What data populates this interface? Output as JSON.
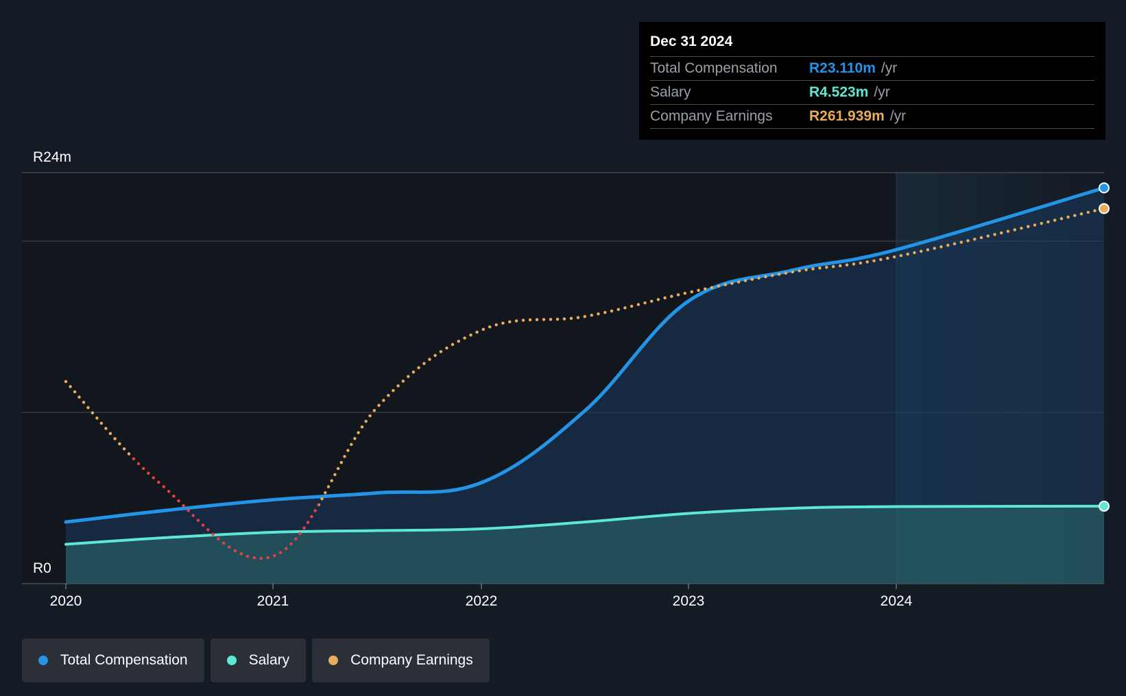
{
  "colors": {
    "background": "#151b24",
    "total_compensation": "#2394e6",
    "salary": "#5ee8d3",
    "company_earnings": "#e9ab5c",
    "company_earnings_negative": "#e84141",
    "grid": "#3a4049"
  },
  "tooltip": {
    "date": "Dec 31 2024",
    "rows": [
      {
        "label": "Total Compensation",
        "value": "R23.110m",
        "unit": "/yr",
        "color": "#2394e6"
      },
      {
        "label": "Salary",
        "value": "R4.523m",
        "unit": "/yr",
        "color": "#5ee8d3"
      },
      {
        "label": "Company Earnings",
        "value": "R261.939m",
        "unit": "/yr",
        "color": "#e9ab5c"
      }
    ]
  },
  "legend": [
    {
      "label": "Total Compensation",
      "color": "#2394e6",
      "icon": "circle-dot-icon"
    },
    {
      "label": "Salary",
      "color": "#5ee8d3",
      "icon": "circle-dot-icon"
    },
    {
      "label": "Company Earnings",
      "color": "#e9ab5c",
      "icon": "circle-dot-icon"
    }
  ],
  "chart_data": {
    "type": "line",
    "title": "",
    "xlabel": "",
    "ylabel": "",
    "y_tick_labels": {
      "top": "R24m",
      "bottom": "R0"
    },
    "ylim": [
      0,
      24
    ],
    "xlim": [
      2020,
      2025
    ],
    "x_ticks": [
      2020,
      2021,
      2022,
      2023,
      2024
    ],
    "highlight_start": 2024,
    "series": [
      {
        "name": "Total Compensation",
        "units": "R m",
        "points": [
          [
            2020,
            3.6
          ],
          [
            2020.5,
            4.3
          ],
          [
            2021,
            4.9
          ],
          [
            2021.5,
            5.3
          ],
          [
            2022,
            5.9
          ],
          [
            2022.5,
            10.1
          ],
          [
            2023,
            16.5
          ],
          [
            2023.5,
            18.3
          ],
          [
            2024,
            19.5
          ],
          [
            2025,
            23.11
          ]
        ]
      },
      {
        "name": "Salary",
        "units": "R m",
        "points": [
          [
            2020,
            2.3
          ],
          [
            2020.5,
            2.7
          ],
          [
            2021,
            3.0
          ],
          [
            2021.5,
            3.1
          ],
          [
            2022,
            3.2
          ],
          [
            2022.5,
            3.6
          ],
          [
            2023,
            4.1
          ],
          [
            2023.5,
            4.4
          ],
          [
            2024,
            4.5
          ],
          [
            2025,
            4.523
          ]
        ]
      },
      {
        "name": "Company Earnings",
        "units": "scaled to compensation axis",
        "style": "dotted",
        "points": [
          [
            2020,
            11.8
          ],
          [
            2020.45,
            5.9
          ],
          [
            2021,
            1.6
          ],
          [
            2021.5,
            10.3
          ],
          [
            2022,
            14.8
          ],
          [
            2022.5,
            15.6
          ],
          [
            2023,
            17.0
          ],
          [
            2023.5,
            18.2
          ],
          [
            2024,
            19.1
          ],
          [
            2025,
            21.9
          ]
        ]
      }
    ]
  }
}
